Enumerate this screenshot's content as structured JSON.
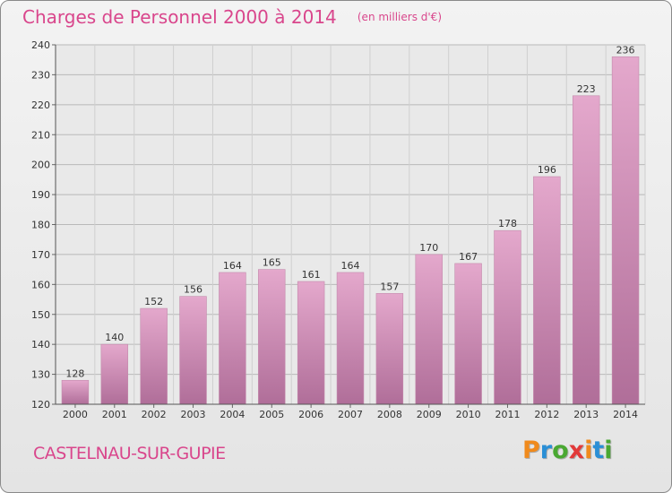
{
  "header": {
    "title": "Charges de Personnel 2000 à 2014",
    "subtitle": "(en milliers d'€)"
  },
  "footer": {
    "commune": "CASTELNAU-SUR-GUPIE",
    "logo_text": "Proxiti"
  },
  "colors": {
    "title": "#d9468c",
    "bar_light": "#e4a8cc",
    "bar_dark": "#b06e99",
    "logo_letters": [
      "#f08a1c",
      "#2a8fd6",
      "#4aa832",
      "#e23a3a",
      "#f08a1c",
      "#2a8fd6",
      "#4aa832"
    ]
  },
  "chart_data": {
    "type": "bar",
    "categories": [
      "2000",
      "2001",
      "2002",
      "2003",
      "2004",
      "2005",
      "2006",
      "2007",
      "2008",
      "2009",
      "2010",
      "2011",
      "2012",
      "2013",
      "2014"
    ],
    "values": [
      128,
      140,
      152,
      156,
      164,
      165,
      161,
      164,
      157,
      170,
      167,
      178,
      196,
      223,
      236
    ],
    "ylim": [
      120,
      240
    ],
    "yticks": [
      120,
      130,
      140,
      150,
      160,
      170,
      180,
      190,
      200,
      210,
      220,
      230,
      240
    ],
    "grid": true,
    "data_labels": true
  }
}
